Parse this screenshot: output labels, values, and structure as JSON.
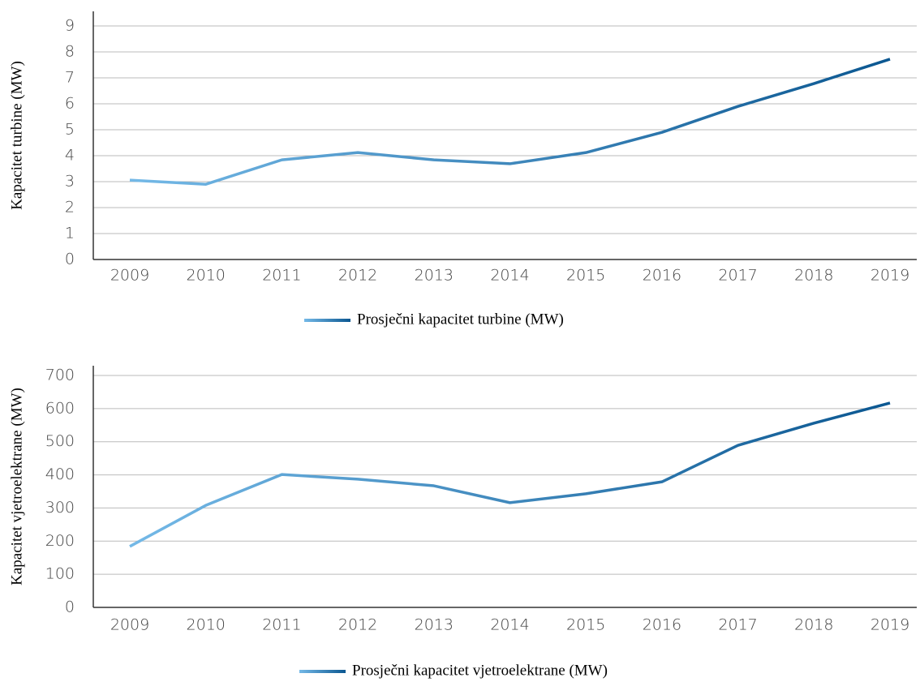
{
  "chart_data": [
    {
      "type": "line",
      "ylabel": "Kapacitet turbine (MW)",
      "categories": [
        "2009",
        "2010",
        "2011",
        "2012",
        "2013",
        "2014",
        "2015",
        "2016",
        "2017",
        "2018",
        "2019"
      ],
      "series": [
        {
          "name": "Prosječni kapacitet turbine (MW)",
          "values": [
            3.06,
            2.9,
            3.84,
            4.12,
            3.84,
            3.69,
            4.12,
            4.9,
            5.9,
            6.78,
            7.72
          ]
        }
      ],
      "ylim": [
        0,
        9
      ],
      "yticks": [
        0,
        1,
        2,
        3,
        4,
        5,
        6,
        7,
        8,
        9
      ],
      "grid": true,
      "gradient": [
        "#74b9e7",
        "#0b5791"
      ]
    },
    {
      "type": "line",
      "ylabel": "Kapacitet vjetroelektrane (MW)",
      "categories": [
        "2009",
        "2010",
        "2011",
        "2012",
        "2013",
        "2014",
        "2015",
        "2016",
        "2017",
        "2018",
        "2019"
      ],
      "series": [
        {
          "name": "Prosječni kapacitet vjetroelektrane (MW)",
          "values": [
            184,
            308,
            401,
            387,
            367,
            316,
            343,
            379,
            489,
            556,
            617
          ]
        }
      ],
      "ylim": [
        0,
        700
      ],
      "yticks": [
        0,
        100,
        200,
        300,
        400,
        500,
        600,
        700
      ],
      "grid": true,
      "gradient": [
        "#74b9e7",
        "#0b5791"
      ]
    }
  ]
}
